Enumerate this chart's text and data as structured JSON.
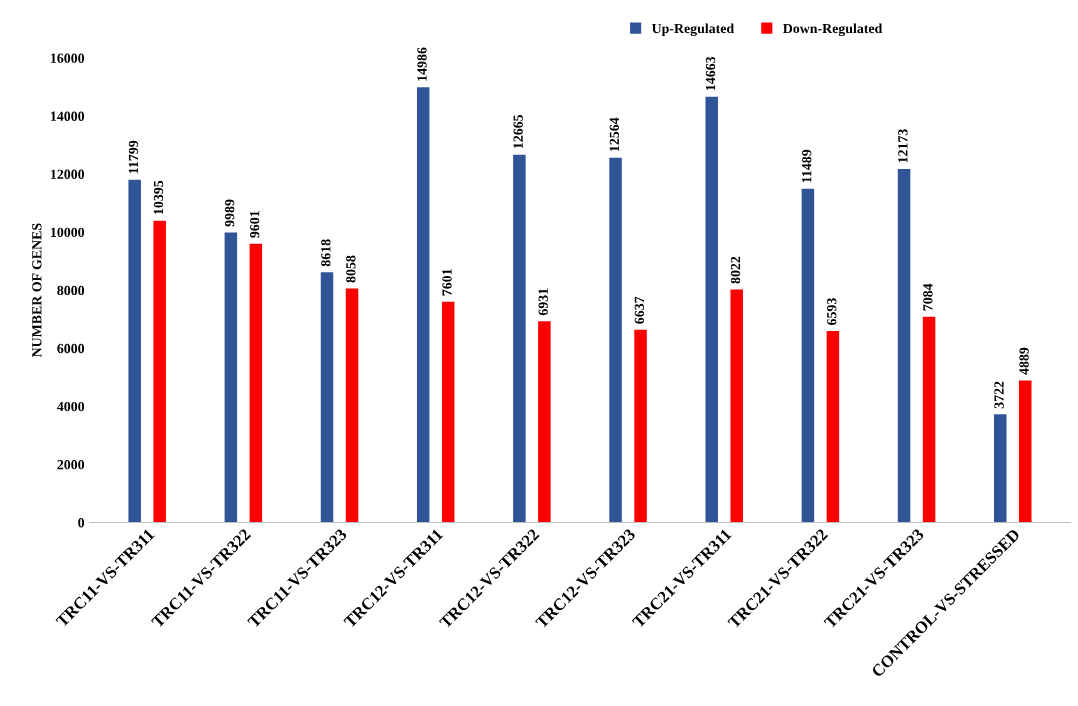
{
  "chart_data": {
    "type": "bar",
    "ylabel": "NUMBER OF GENES",
    "categories": [
      "TRC11-VS-TR311",
      "TRC11-VS-TR322",
      "TRC11-VS-TR323",
      "TRC12-VS-TR311",
      "TRC12-VS-TR322",
      "TRC12-VS-TR323",
      "TRC21-VS-TR311",
      "TRC21-VS-TR322",
      "TRC21-VS-TR323",
      "CONTROL-VS-STRESSED"
    ],
    "series": [
      {
        "name": "Up-Regulated",
        "color": "#2f5597",
        "values": [
          11799,
          9989,
          8618,
          14986,
          12665,
          12564,
          14663,
          11489,
          12173,
          3722
        ]
      },
      {
        "name": "Down-Regulated",
        "color": "#ff0000",
        "values": [
          10395,
          9601,
          8058,
          7601,
          6931,
          6637,
          8022,
          6593,
          7084,
          4889
        ]
      }
    ],
    "ylim": [
      0,
      16000
    ],
    "yticks": [
      0,
      2000,
      4000,
      6000,
      8000,
      10000,
      12000,
      14000,
      16000
    ],
    "data_labels": true,
    "legend": "top right",
    "grid": false
  }
}
